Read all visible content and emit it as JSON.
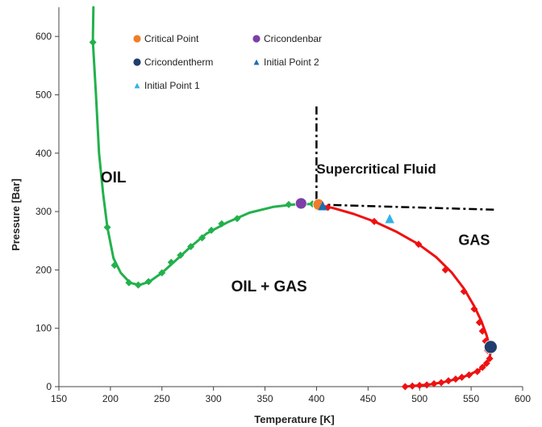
{
  "chart_data": {
    "type": "line",
    "xlabel": "Temperature  [K]",
    "ylabel": "Pressure [Bar]",
    "xlim": [
      150,
      600
    ],
    "ylim": [
      0,
      650
    ],
    "x_ticks": [
      150,
      200,
      250,
      300,
      350,
      400,
      450,
      500,
      550,
      600
    ],
    "y_ticks": [
      0,
      100,
      200,
      300,
      400,
      500,
      600
    ],
    "grid": false,
    "legend_position": "top-center",
    "series": [
      {
        "role": "bubble-point curve",
        "color": "#22b14c",
        "marker": "diamond",
        "line": [
          [
            183.5,
            650
          ],
          [
            183,
            600
          ],
          [
            183,
            590
          ],
          [
            186,
            500
          ],
          [
            189,
            400
          ],
          [
            193,
            330
          ],
          [
            197,
            273
          ],
          [
            203,
            220
          ],
          [
            210,
            195
          ],
          [
            219,
            178
          ],
          [
            228,
            174
          ],
          [
            238,
            180
          ],
          [
            250,
            195
          ],
          [
            262,
            214
          ],
          [
            278,
            240
          ],
          [
            293,
            262
          ],
          [
            313,
            281
          ],
          [
            335,
            298
          ],
          [
            358,
            308
          ],
          [
            378,
            312
          ],
          [
            396,
            313
          ]
        ],
        "markers": [
          [
            183,
            590
          ],
          [
            197,
            273
          ],
          [
            204,
            208
          ],
          [
            218,
            178
          ],
          [
            227,
            174
          ],
          [
            237,
            180
          ],
          [
            250,
            195
          ],
          [
            259,
            213
          ],
          [
            268,
            225
          ],
          [
            278,
            240
          ],
          [
            289,
            255
          ],
          [
            298,
            268
          ],
          [
            308,
            279
          ],
          [
            323,
            288
          ],
          [
            373,
            312
          ],
          [
            396,
            313
          ]
        ]
      },
      {
        "role": "dew-point curve",
        "color": "#ee1111",
        "marker": "diamond",
        "line": [
          [
            396,
            313
          ],
          [
            416,
            306
          ],
          [
            436,
            296
          ],
          [
            456,
            283
          ],
          [
            478,
            265
          ],
          [
            499,
            244
          ],
          [
            516,
            222
          ],
          [
            531,
            196
          ],
          [
            543,
            168
          ],
          [
            553,
            138
          ],
          [
            560,
            112
          ],
          [
            565,
            88
          ],
          [
            568,
            68
          ],
          [
            569,
            60
          ],
          [
            568,
            50
          ],
          [
            565,
            40
          ],
          [
            559,
            30
          ],
          [
            548,
            20
          ],
          [
            536,
            13
          ],
          [
            524,
            8
          ],
          [
            511,
            4
          ],
          [
            498,
            2
          ],
          [
            485,
            0
          ]
        ],
        "markers": [
          [
            411,
            307
          ],
          [
            456,
            283
          ],
          [
            499,
            244
          ],
          [
            525,
            200
          ],
          [
            543,
            163
          ],
          [
            553,
            133
          ],
          [
            558,
            110
          ],
          [
            561,
            95
          ],
          [
            564,
            78
          ],
          [
            566,
            62
          ],
          [
            568,
            48
          ],
          [
            565,
            40
          ],
          [
            561,
            33
          ],
          [
            556,
            26
          ],
          [
            548,
            20
          ],
          [
            541,
            16
          ],
          [
            535,
            13
          ],
          [
            528,
            10
          ],
          [
            521,
            7
          ],
          [
            514,
            5
          ],
          [
            507,
            3
          ],
          [
            500,
            2
          ],
          [
            493,
            1
          ],
          [
            486,
            0
          ]
        ]
      }
    ],
    "legend": [
      {
        "label": "Critical Point",
        "color": "#f07d28",
        "shape": "circle",
        "value": [
          402,
          312
        ]
      },
      {
        "label": "Cricondenbar",
        "color": "#7b3fa8",
        "shape": "circle",
        "value": [
          385,
          314
        ]
      },
      {
        "label": "Cricondentherm",
        "color": "#1f3e6e",
        "shape": "circle",
        "value": [
          569,
          68
        ]
      },
      {
        "label": "Initial Point 2",
        "color": "#1a6fb4",
        "shape": "triangle",
        "value": [
          406,
          310
        ]
      },
      {
        "label": "Initial Point 1",
        "color": "#33b3e6",
        "shape": "triangle",
        "value": [
          471,
          288
        ]
      }
    ],
    "dashdot_lines": [
      {
        "color": "#000000",
        "points": [
          [
            400,
            480
          ],
          [
            400,
            312
          ]
        ]
      },
      {
        "color": "#000000",
        "points": [
          [
            400,
            312
          ],
          [
            575,
            303
          ]
        ]
      }
    ],
    "region_labels": [
      {
        "text": "OIL",
        "x": 203,
        "y": 350,
        "size": 19
      },
      {
        "text": "Supercritical  Fluid",
        "x": 458,
        "y": 365,
        "size": 17
      },
      {
        "text": "GAS",
        "x": 553,
        "y": 243,
        "size": 18
      },
      {
        "text": "OIL + GAS",
        "x": 354,
        "y": 163,
        "size": 19
      }
    ]
  }
}
